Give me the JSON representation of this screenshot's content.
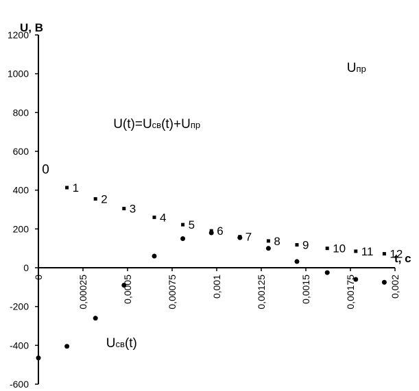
{
  "chart_data": {
    "type": "scatter",
    "xlabel": "t, c",
    "ylabel": "U, B",
    "xlim": [
      0,
      0.002
    ],
    "ylim": [
      -600,
      1200
    ],
    "x_ticks": [
      0,
      0.00025,
      0.0005,
      0.00075,
      0.001,
      0.00125,
      0.0015,
      0.00175,
      0.002
    ],
    "x_tick_labels": [
      "0",
      "0,00025",
      "0,0005",
      "0,00075",
      "0,001",
      "0,00125",
      "0,0015",
      "0,00175",
      "0,002"
    ],
    "y_ticks": [
      -600,
      -400,
      -200,
      0,
      200,
      400,
      600,
      800,
      1000,
      1200
    ],
    "y_tick_labels": [
      "-600",
      "-400",
      "-200",
      "0",
      "200",
      "400",
      "600",
      "800",
      "1000",
      "1200"
    ],
    "grid": false,
    "series": [
      {
        "marker": "square",
        "x": [
          0.00016,
          0.00032,
          0.00048,
          0.00065,
          0.00081,
          0.00097,
          0.00113,
          0.00129,
          0.00145,
          0.00162,
          0.00178,
          0.00194
        ],
        "y": [
          413,
          355,
          305,
          260,
          222,
          190,
          160,
          138,
          118,
          100,
          85,
          72
        ],
        "point_labels": [
          "1",
          "2",
          "3",
          "4",
          "5",
          "6",
          "7",
          "8",
          "9",
          "10",
          "11",
          "12"
        ]
      },
      {
        "marker": "circle",
        "x": [
          0,
          0.00016,
          0.00032,
          0.00048,
          0.00065,
          0.00081,
          0.00097,
          0.00113,
          0.00129,
          0.00145,
          0.00162,
          0.00178,
          0.00194
        ],
        "y": [
          -465,
          -405,
          -260,
          -90,
          60,
          150,
          180,
          155,
          100,
          32,
          -25,
          -60,
          -75
        ]
      }
    ],
    "annotations": [
      {
        "text": "0",
        "x": 2e-05,
        "y": 485
      },
      {
        "main": "U",
        "sub": "пр",
        "x": 0.00173,
        "y": 1010
      },
      {
        "main": "U(t)=U",
        "sub": "св",
        "tail": "(t)+U",
        "sub2": "пр",
        "x": 0.00042,
        "y": 720
      },
      {
        "main": "U",
        "sub": "св",
        "tail": "(t)",
        "x": 0.00038,
        "y": -410
      }
    ]
  }
}
